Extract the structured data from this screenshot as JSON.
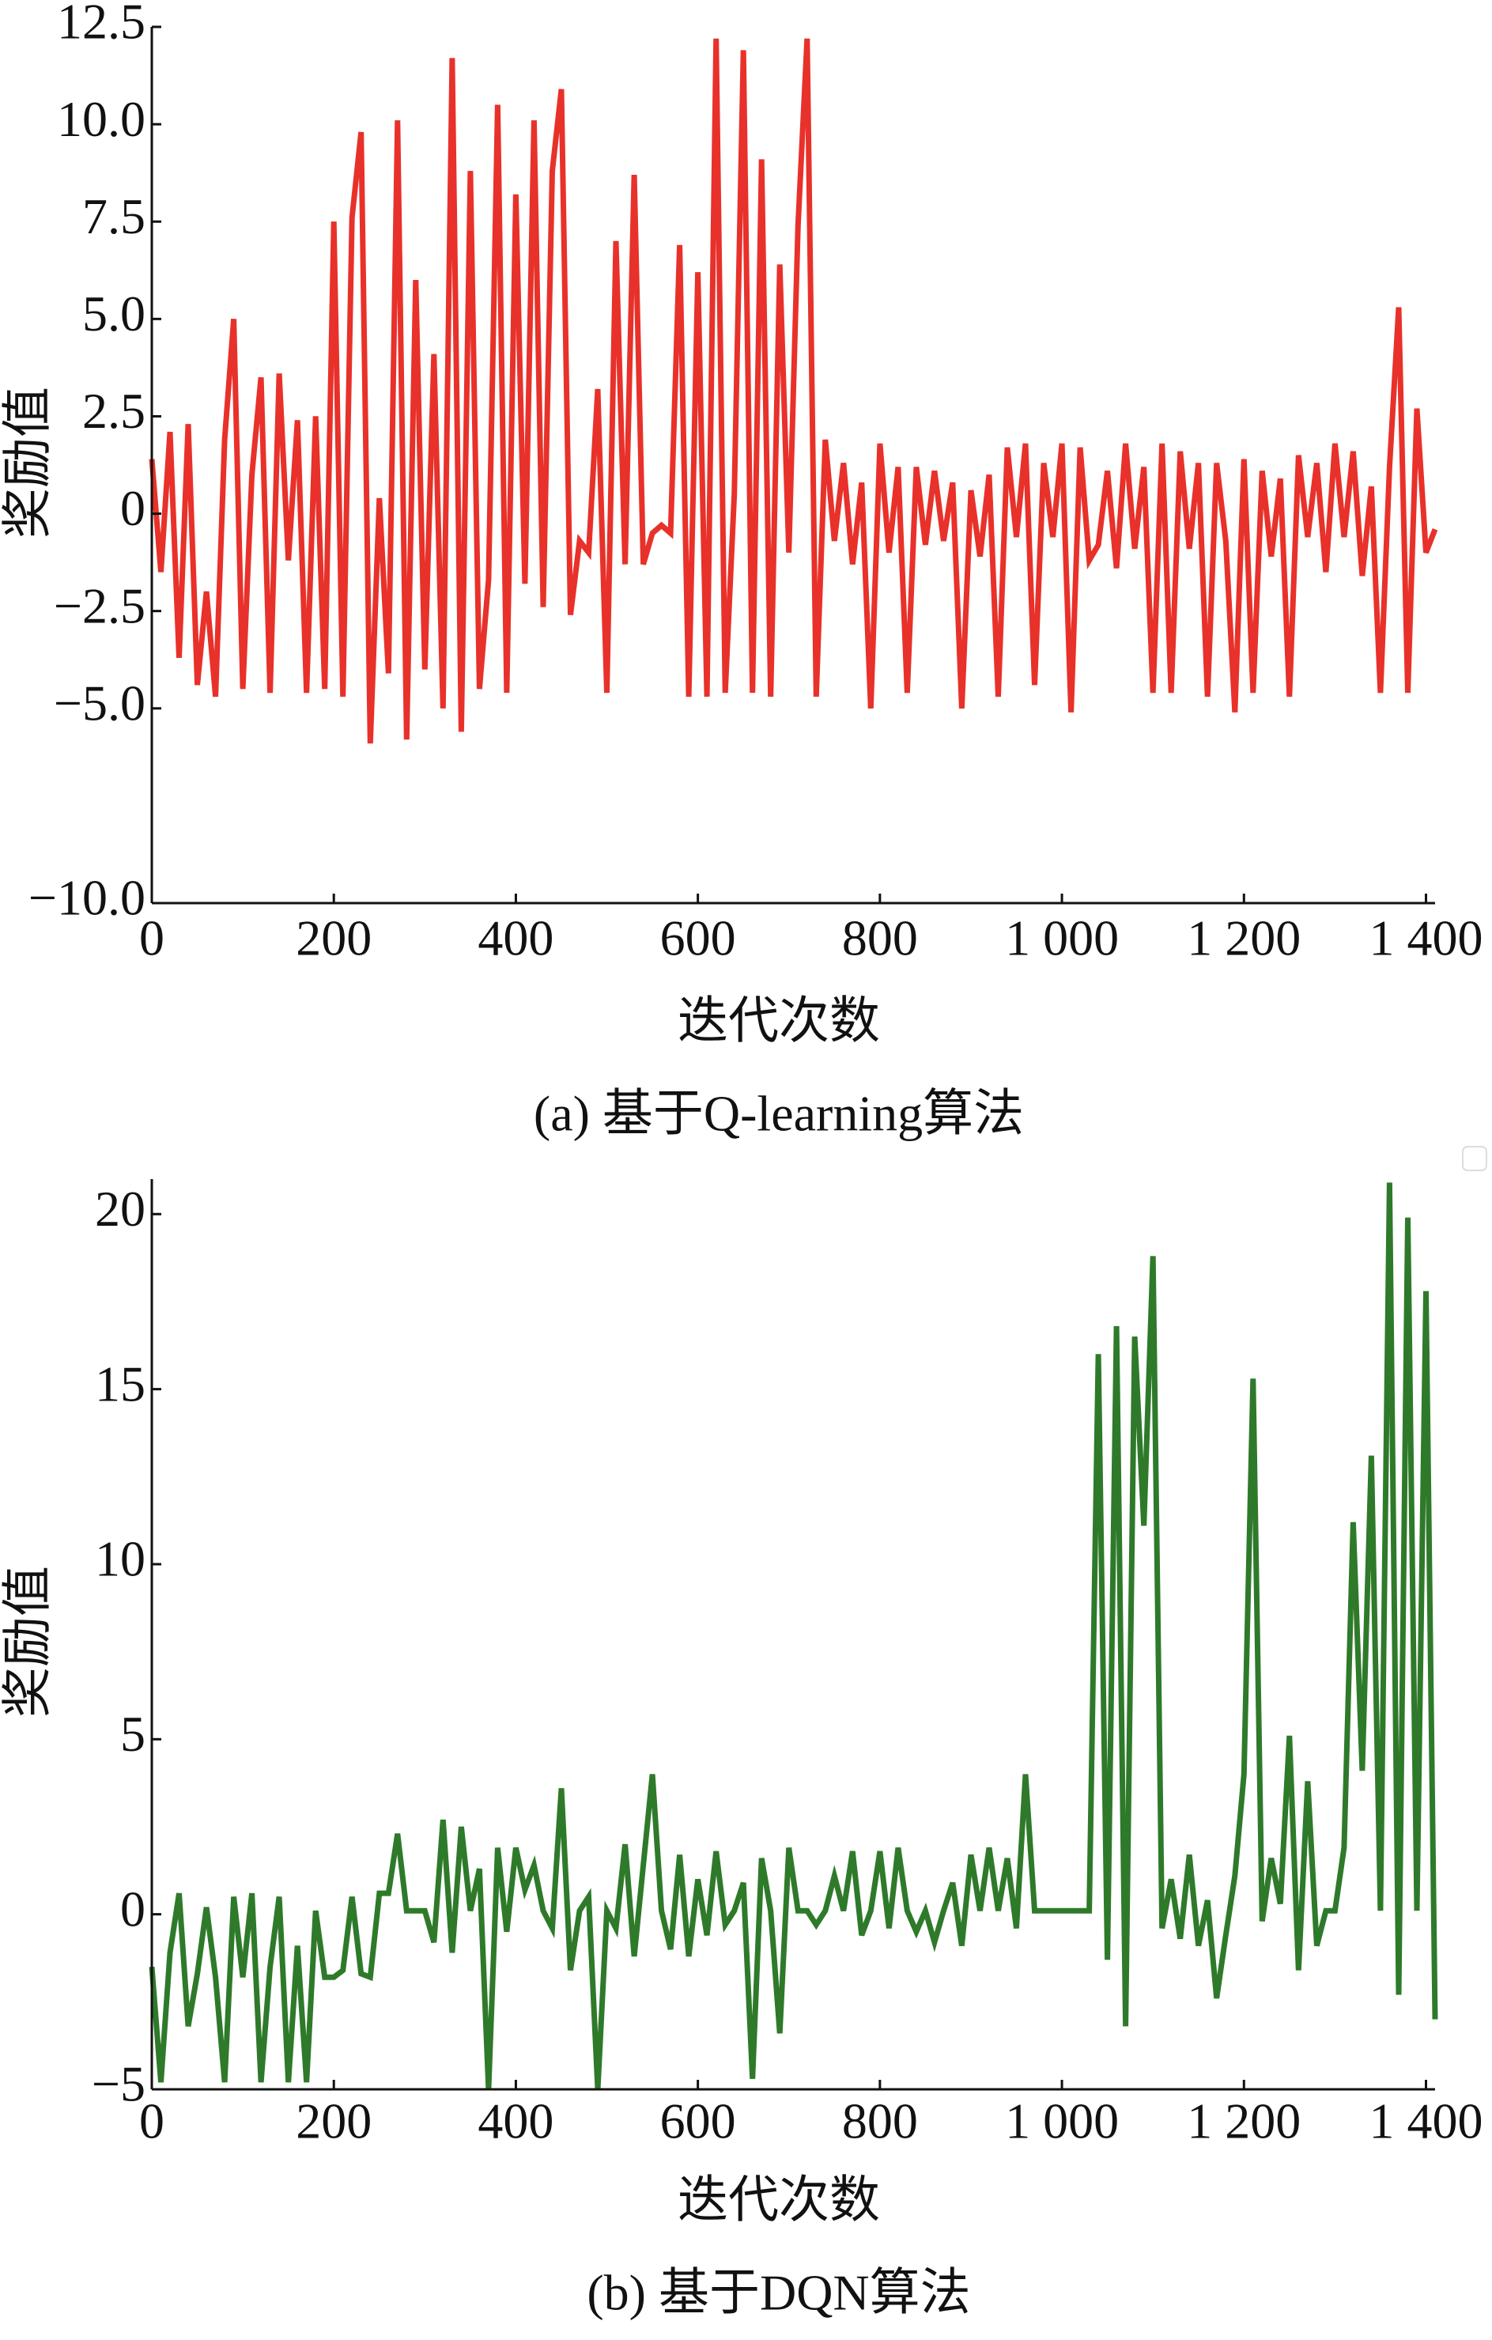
{
  "chart_data": [
    {
      "type": "line",
      "title": "(a) 基于Q-learning算法",
      "x_label": "迭代次数",
      "y_label": "奖励值",
      "x": [
        0,
        10,
        20,
        30,
        40,
        50,
        60,
        70,
        80,
        90,
        100,
        110,
        120,
        130,
        140,
        150,
        160,
        170,
        180,
        190,
        200,
        210,
        220,
        230,
        240,
        250,
        260,
        270,
        280,
        290,
        300,
        310,
        320,
        330,
        340,
        350,
        360,
        370,
        380,
        390,
        400,
        410,
        420,
        430,
        440,
        450,
        460,
        470,
        480,
        490,
        500,
        510,
        520,
        530,
        540,
        550,
        560,
        570,
        580,
        590,
        600,
        610,
        620,
        630,
        640,
        650,
        660,
        670,
        680,
        690,
        700,
        710,
        720,
        730,
        740,
        750,
        760,
        770,
        780,
        790,
        800,
        810,
        820,
        830,
        840,
        850,
        860,
        870,
        880,
        890,
        900,
        910,
        920,
        930,
        940,
        950,
        960,
        970,
        980,
        990,
        1000,
        1010,
        1020,
        1030,
        1040,
        1050,
        1060,
        1070,
        1080,
        1090,
        1100,
        1110,
        1120,
        1130,
        1140,
        1150,
        1160,
        1170,
        1180,
        1190,
        1200,
        1210,
        1220,
        1230,
        1240,
        1250,
        1260,
        1270,
        1280,
        1290,
        1300,
        1310,
        1320,
        1330,
        1340,
        1350,
        1360,
        1370,
        1380,
        1390,
        1400,
        1410
      ],
      "series": [
        {
          "name": "Q-learning",
          "color": "#e8312a",
          "values": [
            1.4,
            -1.5,
            2.1,
            -3.7,
            2.3,
            -4.4,
            -2,
            -4.7,
            1.9,
            5.0,
            -4.5,
            1,
            3.5,
            -4.6,
            3.6,
            -1.2,
            2.4,
            -4.6,
            2.5,
            -4.5,
            7.5,
            -4.7,
            7.6,
            9.8,
            -5.9,
            0.4,
            -4.1,
            10.1,
            -5.8,
            6.0,
            -4.0,
            4.1,
            -5,
            11.7,
            -5.6,
            8.8,
            -4.5,
            -1.7,
            10.5,
            -4.6,
            8.2,
            -1.8,
            10.1,
            -2.4,
            8.8,
            10.9,
            -2.6,
            -0.7,
            -1,
            3.2,
            -4.6,
            7.0,
            -1.3,
            8.7,
            -1.3,
            -0.5,
            -0.3,
            -0.5,
            6.9,
            -4.7,
            6.2,
            -4.7,
            12.2,
            -4.6,
            0.5,
            11.9,
            -4.6,
            9.1,
            -4.7,
            6.4,
            -1,
            7.4,
            12.2,
            -4.7,
            1.9,
            -0.7,
            1.3,
            -1.3,
            0.8,
            -5,
            1.8,
            -1,
            1.2,
            -4.6,
            1.2,
            -0.8,
            1.1,
            -0.7,
            0.8,
            -5.0,
            0.6,
            -1.1,
            1,
            -4.7,
            1.7,
            -0.6,
            1.8,
            -4.4,
            1.3,
            -0.6,
            1.8,
            -5.1,
            1.7,
            -1.2,
            -0.8,
            1.1,
            -1.4,
            1.8,
            -0.9,
            1.2,
            -4.6,
            1.8,
            -4.6,
            1.6,
            -0.9,
            1.3,
            -4.7,
            1.3,
            -0.7,
            -5.1,
            1.4,
            -4.6,
            1.1,
            -1.1,
            0.9,
            -4.7,
            1.5,
            -0.6,
            1.3,
            -1.5,
            1.8,
            -0.6,
            1.6,
            -1.6,
            0.7,
            -4.6,
            1.2,
            5.3,
            -4.6,
            2.7,
            -1.0,
            -0.4
          ]
        }
      ],
      "xlim": [
        0,
        1410
      ],
      "xticks": [
        0,
        200,
        400,
        600,
        800,
        {
          "value": 1000,
          "label": "1 000"
        },
        {
          "value": 1200,
          "label": "1 200"
        },
        {
          "value": 1400,
          "label": "1 400"
        }
      ],
      "ylim": [
        -10,
        12.5
      ],
      "yticks": [
        {
          "value": -10,
          "label": "−10.0"
        },
        {
          "value": -5,
          "label": "−5.0"
        },
        {
          "value": -2.5,
          "label": "−2.5"
        },
        0,
        2.5,
        {
          "value": 5,
          "label": "5.0"
        },
        7.5,
        {
          "value": 10,
          "label": "10.0"
        },
        12.5
      ]
    },
    {
      "type": "line",
      "title": "(b) 基于DQN算法",
      "x_label": "迭代次数",
      "y_label": "奖励值",
      "x": [
        0,
        10,
        20,
        30,
        40,
        50,
        60,
        70,
        80,
        90,
        100,
        110,
        120,
        130,
        140,
        150,
        160,
        170,
        180,
        190,
        200,
        210,
        220,
        230,
        240,
        250,
        260,
        270,
        280,
        290,
        300,
        310,
        320,
        330,
        340,
        350,
        360,
        370,
        380,
        390,
        400,
        410,
        420,
        430,
        440,
        450,
        460,
        470,
        480,
        490,
        500,
        510,
        520,
        530,
        540,
        550,
        560,
        570,
        580,
        590,
        600,
        610,
        620,
        630,
        640,
        650,
        660,
        670,
        680,
        690,
        700,
        710,
        720,
        730,
        740,
        750,
        760,
        770,
        780,
        790,
        800,
        810,
        820,
        830,
        840,
        850,
        860,
        870,
        880,
        890,
        900,
        910,
        920,
        930,
        940,
        950,
        960,
        970,
        980,
        990,
        1000,
        1010,
        1020,
        1030,
        1040,
        1050,
        1060,
        1070,
        1080,
        1090,
        1100,
        1110,
        1120,
        1130,
        1140,
        1150,
        1160,
        1170,
        1180,
        1190,
        1200,
        1210,
        1220,
        1230,
        1240,
        1250,
        1260,
        1270,
        1280,
        1290,
        1300,
        1310,
        1320,
        1330,
        1340,
        1350,
        1360,
        1370,
        1380,
        1390,
        1400,
        1410
      ],
      "series": [
        {
          "name": "DQN",
          "color": "#2e7a2a",
          "values": [
            -1.5,
            -4.8,
            -1.1,
            0.6,
            -3.2,
            -1.7,
            0.2,
            -1.8,
            -4.8,
            0.5,
            -1.8,
            0.6,
            -4.8,
            -1.5,
            0.5,
            -4.8,
            -0.9,
            -4.8,
            0.1,
            -1.8,
            -1.8,
            -1.6,
            0.5,
            -1.7,
            -1.8,
            0.6,
            0.6,
            2.3,
            0.1,
            0.1,
            0.1,
            -0.8,
            2.7,
            -1.1,
            2.5,
            0.1,
            1.3,
            -5.0,
            1.9,
            -0.5,
            1.9,
            0.7,
            1.4,
            0.1,
            -0.4,
            3.6,
            -1.6,
            0.1,
            0.5,
            -5.0,
            0.1,
            -0.4,
            2.0,
            -1.2,
            1.4,
            4.0,
            0.1,
            -1.0,
            1.7,
            -1.2,
            1.0,
            -0.6,
            1.8,
            -0.3,
            0.1,
            0.9,
            -4.7,
            1.6,
            0.1,
            -3.4,
            1.9,
            0.1,
            0.1,
            -0.3,
            0.1,
            1.1,
            0.1,
            1.8,
            -0.6,
            0.1,
            1.8,
            -0.4,
            1.9,
            0.1,
            -0.5,
            0.1,
            -0.8,
            0.1,
            0.9,
            -0.9,
            1.7,
            0.1,
            1.9,
            0.1,
            1.6,
            -0.4,
            4.0,
            0.1,
            0.1,
            0.1,
            0.1,
            0.1,
            0.1,
            0.1,
            16.0,
            -1.3,
            16.8,
            -3.2,
            16.5,
            11.1,
            18.8,
            -0.4,
            1.0,
            -0.7,
            1.7,
            -0.9,
            0.4,
            -2.4,
            -0.6,
            1.1,
            4.0,
            15.3,
            -0.2,
            1.6,
            0.3,
            5.1,
            -1.6,
            3.8,
            -0.9,
            0.1,
            0.1,
            1.9,
            11.2,
            4.1,
            13.1,
            0.1,
            20.9,
            -2.3,
            19.9,
            0.1,
            17.8,
            -3.0
          ]
        }
      ],
      "xlim": [
        0,
        1410
      ],
      "xticks": [
        0,
        200,
        400,
        600,
        800,
        {
          "value": 1000,
          "label": "1 000"
        },
        {
          "value": 1200,
          "label": "1 200"
        },
        {
          "value": 1400,
          "label": "1 400"
        }
      ],
      "ylim": [
        -5,
        21
      ],
      "yticks": [
        {
          "value": -5,
          "label": "−5"
        },
        0,
        5,
        10,
        15,
        20
      ]
    }
  ]
}
